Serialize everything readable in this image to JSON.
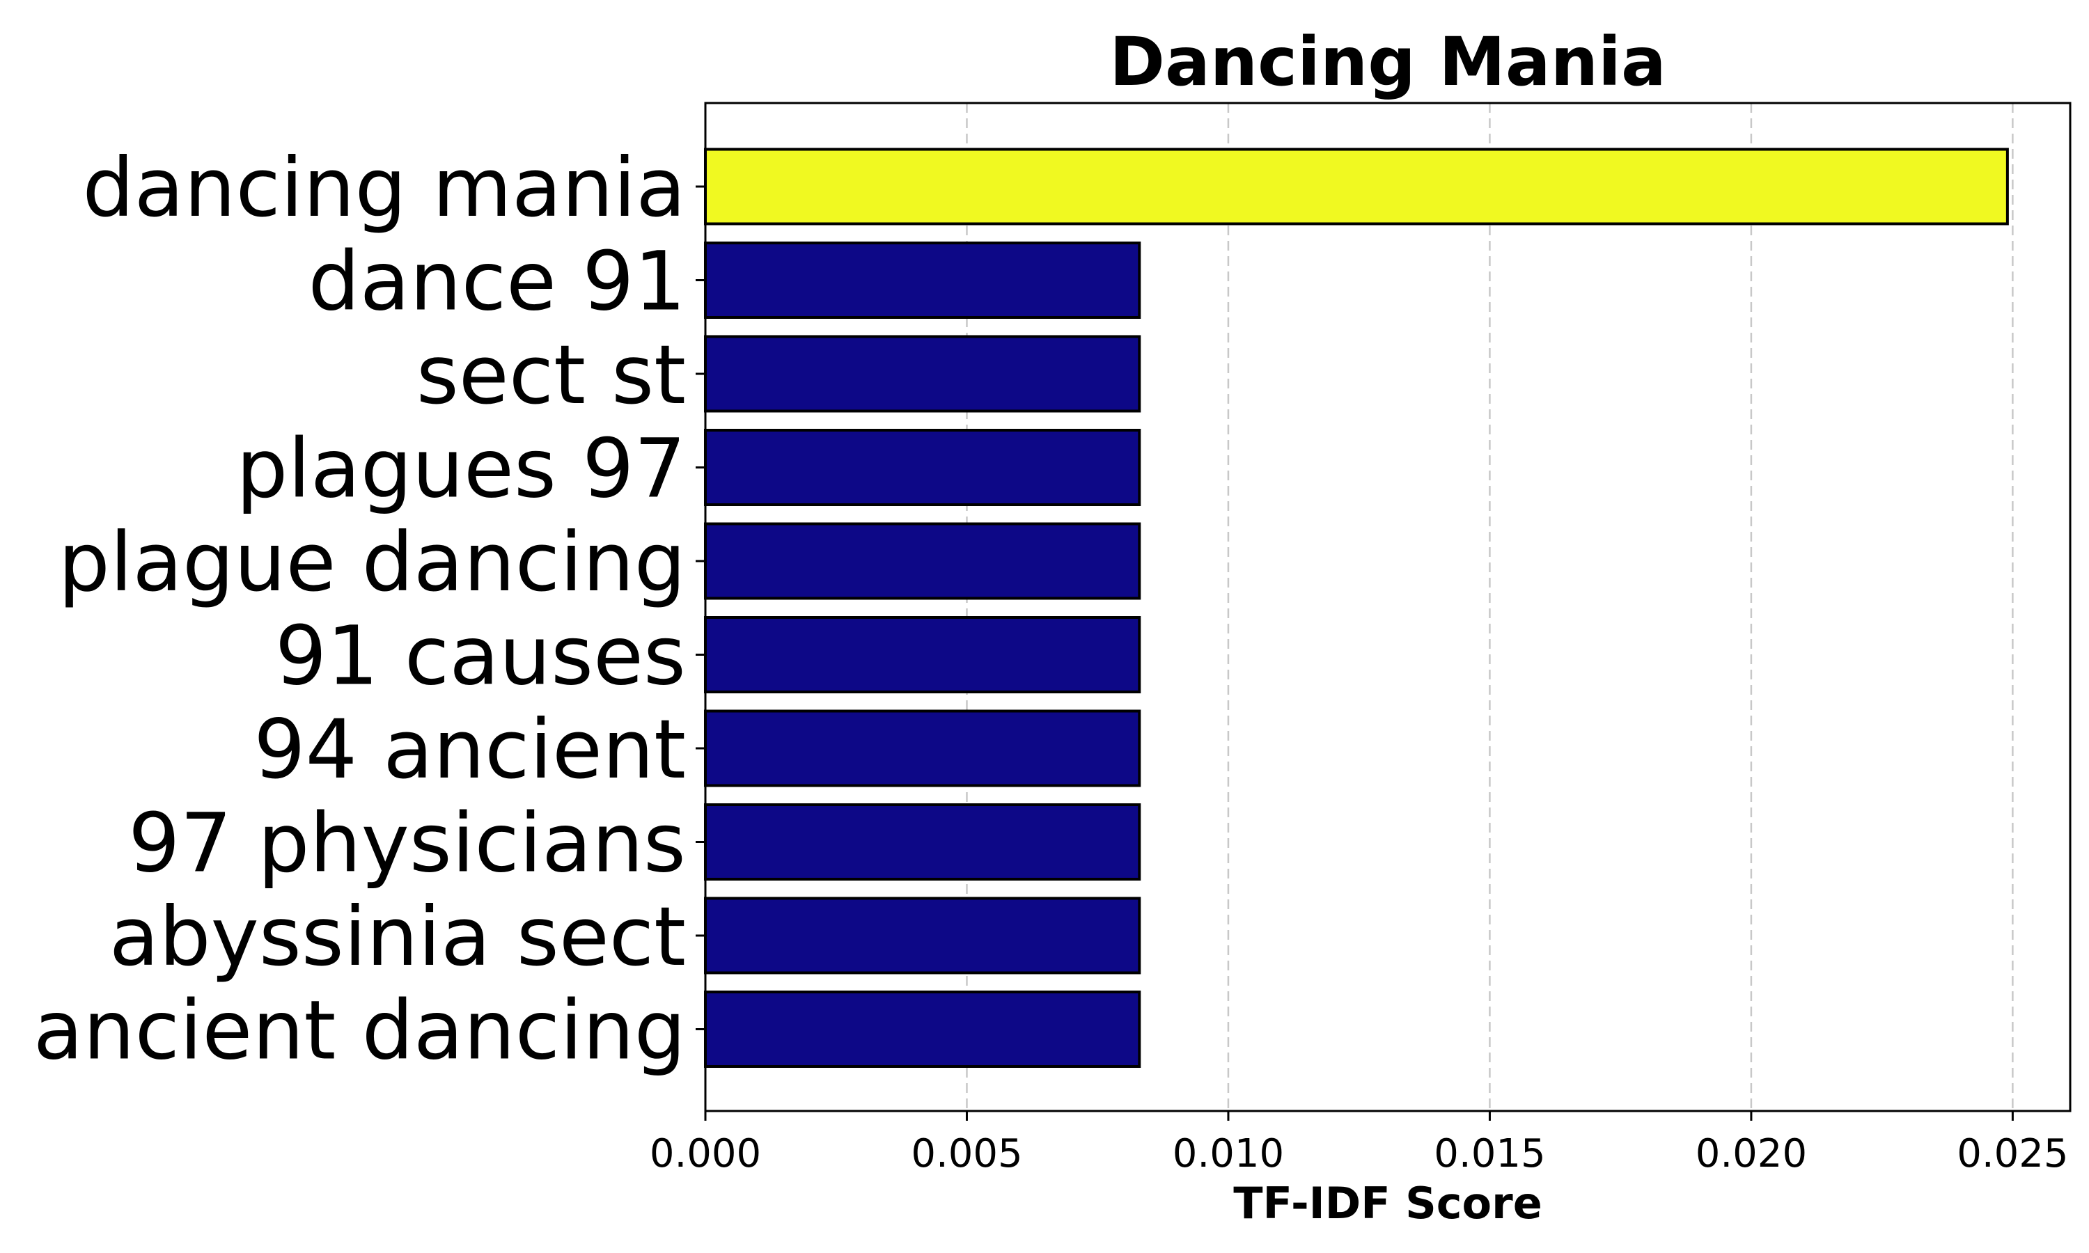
{
  "chart_data": {
    "type": "bar",
    "orientation": "horizontal",
    "title": "Dancing Mania",
    "xlabel": "TF-IDF Score",
    "ylabel": "",
    "xlim": [
      0,
      0.0261
    ],
    "xticks": [
      "0.000",
      "0.005",
      "0.010",
      "0.015",
      "0.020",
      "0.025"
    ],
    "grid": "x-dashed",
    "categories": [
      "dancing mania",
      "dance 91",
      "sect st",
      "plagues 97",
      "plague dancing",
      "91 causes",
      "94 ancient",
      "97 physicians",
      "abyssinia sect",
      "ancient dancing"
    ],
    "values": [
      0.0249,
      0.0083,
      0.0083,
      0.0083,
      0.0083,
      0.0083,
      0.0083,
      0.0083,
      0.0083,
      0.0083
    ],
    "colors": [
      "#f0f921",
      "#0d0887",
      "#0d0887",
      "#0d0887",
      "#0d0887",
      "#0d0887",
      "#0d0887",
      "#0d0887",
      "#0d0887",
      "#0d0887"
    ]
  }
}
